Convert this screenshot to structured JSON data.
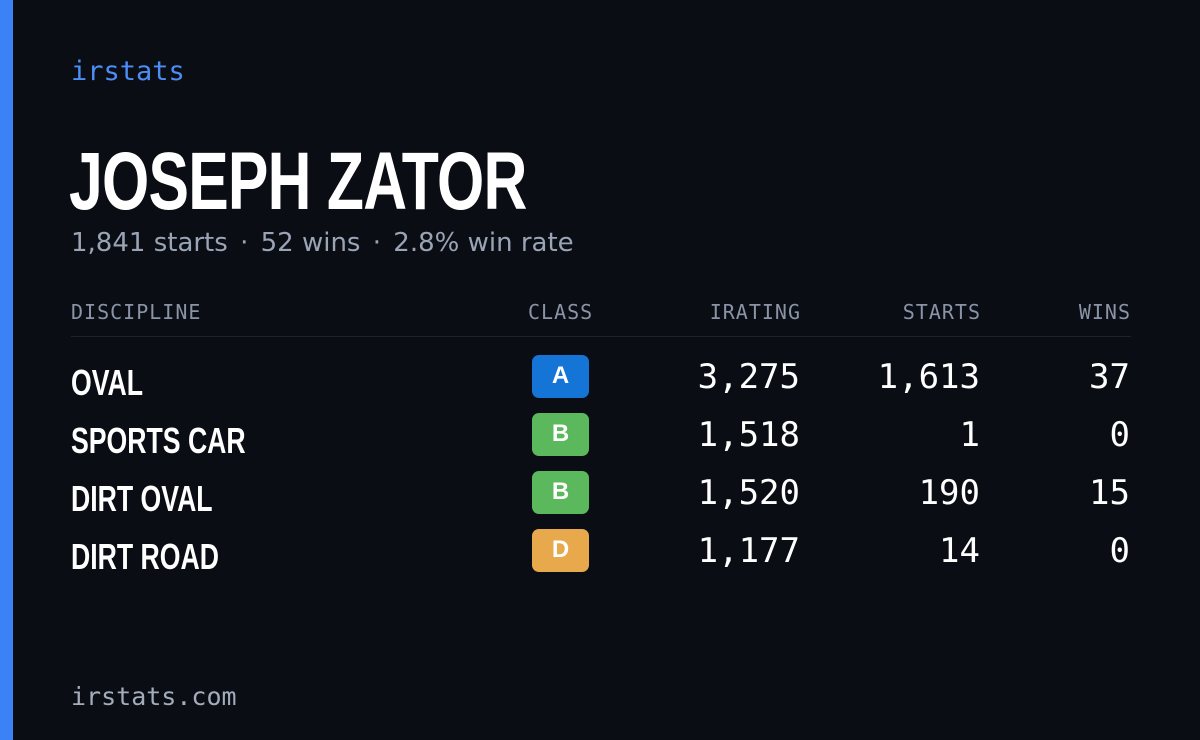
{
  "brand": "irstats",
  "driver": {
    "name": "JOSEPH ZATOR"
  },
  "summary": {
    "starts": "1,841 starts",
    "wins": "52 wins",
    "win_rate": "2.8% win rate",
    "separator": "·"
  },
  "table": {
    "headers": {
      "discipline": "DISCIPLINE",
      "class": "CLASS",
      "irating": "IRATING",
      "starts": "STARTS",
      "wins": "WINS"
    },
    "rows": [
      {
        "discipline": "OVAL",
        "class": "A",
        "class_color": "#1475d6",
        "irating": "3,275",
        "starts": "1,613",
        "wins": "37"
      },
      {
        "discipline": "SPORTS CAR",
        "class": "B",
        "class_color": "#5cb85c",
        "irating": "1,518",
        "starts": "1",
        "wins": "0"
      },
      {
        "discipline": "DIRT OVAL",
        "class": "B",
        "class_color": "#5cb85c",
        "irating": "1,520",
        "starts": "190",
        "wins": "15"
      },
      {
        "discipline": "DIRT ROAD",
        "class": "D",
        "class_color": "#e8a94d",
        "irating": "1,177",
        "starts": "14",
        "wins": "0"
      }
    ]
  },
  "footer": "irstats.com",
  "colors": {
    "background": "#0a0d14",
    "accent": "#3b82f6",
    "brand": "#4c8df6",
    "muted_text": "#9aa4b5"
  }
}
